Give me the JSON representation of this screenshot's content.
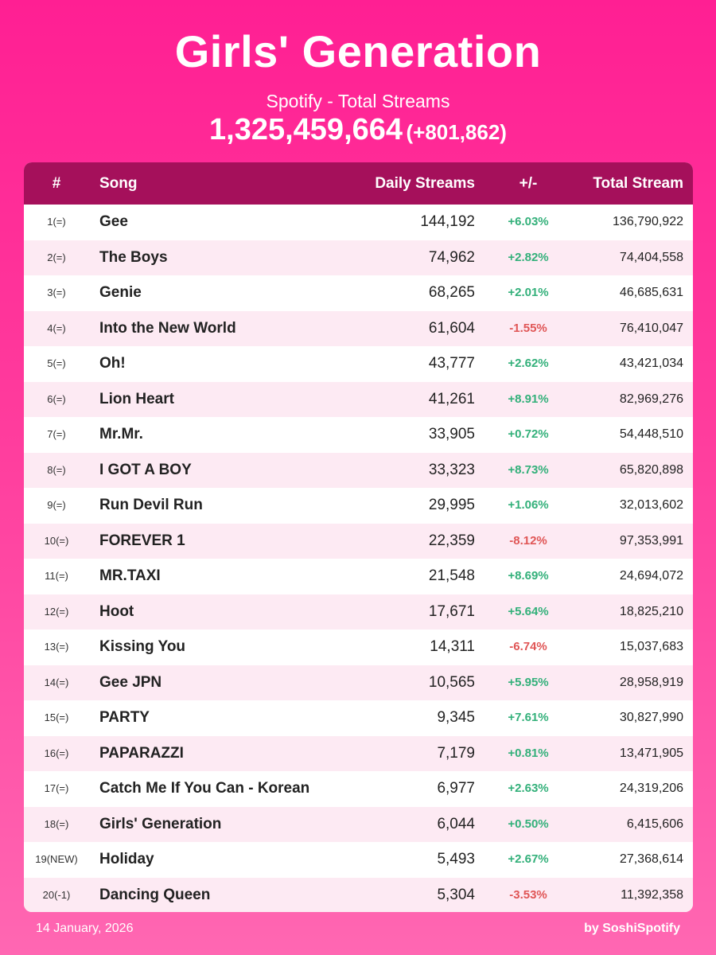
{
  "header": {
    "title": "Girls' Generation",
    "subtitle": "Spotify - Total Streams",
    "total_streams": "1,325,459,664",
    "total_delta": "(+801,862)"
  },
  "table": {
    "columns": [
      "#",
      "Song",
      "Daily Streams",
      "+/-",
      "Total Stream"
    ],
    "rows": [
      {
        "rank": "1(=)",
        "song": "Gee",
        "daily": "144,192",
        "change": "+6.03%",
        "trend": "up",
        "total": "136,790,922"
      },
      {
        "rank": "2(=)",
        "song": "The Boys",
        "daily": "74,962",
        "change": "+2.82%",
        "trend": "up",
        "total": "74,404,558"
      },
      {
        "rank": "3(=)",
        "song": "Genie",
        "daily": "68,265",
        "change": "+2.01%",
        "trend": "up",
        "total": "46,685,631"
      },
      {
        "rank": "4(=)",
        "song": "Into the New World",
        "daily": "61,604",
        "change": "-1.55%",
        "trend": "down",
        "total": "76,410,047"
      },
      {
        "rank": "5(=)",
        "song": "Oh!",
        "daily": "43,777",
        "change": "+2.62%",
        "trend": "up",
        "total": "43,421,034"
      },
      {
        "rank": "6(=)",
        "song": "Lion Heart",
        "daily": "41,261",
        "change": "+8.91%",
        "trend": "up",
        "total": "82,969,276"
      },
      {
        "rank": "7(=)",
        "song": "Mr.Mr.",
        "daily": "33,905",
        "change": "+0.72%",
        "trend": "up",
        "total": "54,448,510"
      },
      {
        "rank": "8(=)",
        "song": "I GOT A BOY",
        "daily": "33,323",
        "change": "+8.73%",
        "trend": "up",
        "total": "65,820,898"
      },
      {
        "rank": "9(=)",
        "song": "Run Devil Run",
        "daily": "29,995",
        "change": "+1.06%",
        "trend": "up",
        "total": "32,013,602"
      },
      {
        "rank": "10(=)",
        "song": "FOREVER 1",
        "daily": "22,359",
        "change": "-8.12%",
        "trend": "down",
        "total": "97,353,991"
      },
      {
        "rank": "11(=)",
        "song": "MR.TAXI",
        "daily": "21,548",
        "change": "+8.69%",
        "trend": "up",
        "total": "24,694,072"
      },
      {
        "rank": "12(=)",
        "song": "Hoot",
        "daily": "17,671",
        "change": "+5.64%",
        "trend": "up",
        "total": "18,825,210"
      },
      {
        "rank": "13(=)",
        "song": "Kissing You",
        "daily": "14,311",
        "change": "-6.74%",
        "trend": "down",
        "total": "15,037,683"
      },
      {
        "rank": "14(=)",
        "song": "Gee JPN",
        "daily": "10,565",
        "change": "+5.95%",
        "trend": "up",
        "total": "28,958,919"
      },
      {
        "rank": "15(=)",
        "song": "PARTY",
        "daily": "9,345",
        "change": "+7.61%",
        "trend": "up",
        "total": "30,827,990"
      },
      {
        "rank": "16(=)",
        "song": "PAPARAZZI",
        "daily": "7,179",
        "change": "+0.81%",
        "trend": "up",
        "total": "13,471,905"
      },
      {
        "rank": "17(=)",
        "song": "Catch Me If You Can - Korean",
        "daily": "6,977",
        "change": "+2.63%",
        "trend": "up",
        "total": "24,319,206"
      },
      {
        "rank": "18(=)",
        "song": "Girls' Generation",
        "daily": "6,044",
        "change": "+0.50%",
        "trend": "up",
        "total": "6,415,606"
      },
      {
        "rank": "19(NEW)",
        "song": "Holiday",
        "daily": "5,493",
        "change": "+2.67%",
        "trend": "up",
        "total": "27,368,614"
      },
      {
        "rank": "20(-1)",
        "song": "Dancing Queen",
        "daily": "5,304",
        "change": "-3.53%",
        "trend": "down",
        "total": "11,392,358"
      }
    ]
  },
  "footer": {
    "date": "14 January, 2026",
    "credit": "by SoshiSpotify"
  },
  "colors": {
    "background": "#ff1f93",
    "header_bar": "#a5105b",
    "row_alt": "#fdeaf3",
    "positive": "#33b07a",
    "negative": "#e05656"
  }
}
